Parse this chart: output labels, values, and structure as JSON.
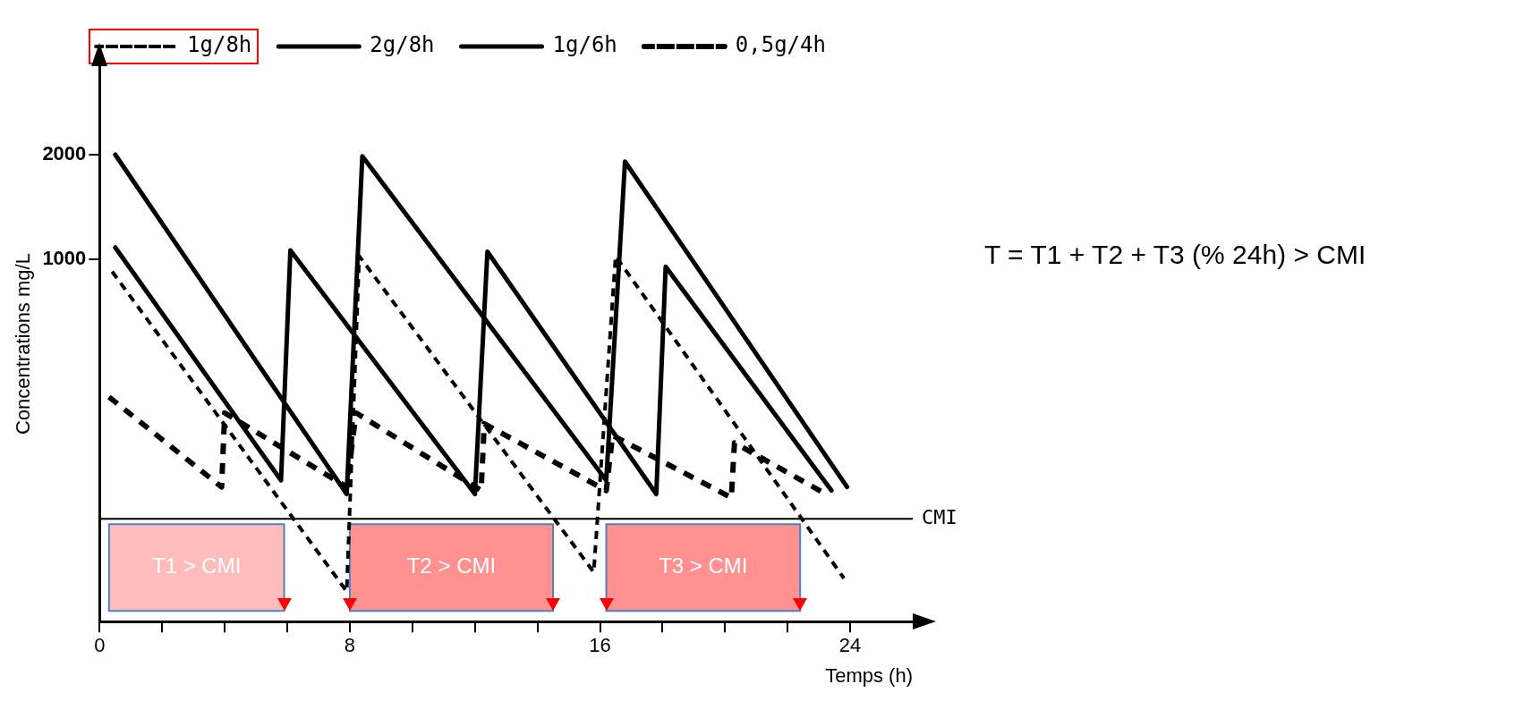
{
  "chart_data": {
    "type": "line",
    "xlabel": "Temps (h)",
    "ylabel": "Concentrations mg/L",
    "annotations": [
      "T = T1 + T2 + T3 (% 24h) > CMI"
    ],
    "xlim": [
      0,
      26
    ],
    "xticks": [
      0,
      {
        "value": 2,
        "label": null
      },
      {
        "value": 4,
        "label": null
      },
      {
        "value": 6,
        "label": null
      },
      8,
      {
        "value": 10,
        "label": null
      },
      {
        "value": 12,
        "label": null
      },
      {
        "value": 14,
        "label": null
      },
      16,
      {
        "value": 18,
        "label": null
      },
      {
        "value": 20,
        "label": null
      },
      {
        "value": 22,
        "label": null
      },
      24
    ],
    "ylim": [
      90,
      3600
    ],
    "yticks": [
      1000,
      2000
    ],
    "log": true,
    "grid": false,
    "legend": "top",
    "marker": "none",
    "series": [
      {
        "name": "1g/8h",
        "color": "#000000",
        "line_style": "dotted",
        "x": [
          0.4,
          7.9,
          8.3,
          15.8,
          16.5,
          23.8
        ],
        "values": [
          920,
          110,
          1020,
          125,
          1020,
          120
        ]
      },
      {
        "name": "2g/8h",
        "color": "#000000",
        "line_style": "solid",
        "x": [
          0.5,
          7.9,
          8.4,
          16.2,
          16.8,
          23.9
        ],
        "values": [
          2000,
          210,
          1980,
          230,
          1910,
          220
        ]
      },
      {
        "name": "1g/6h",
        "color": "#000000",
        "line_style": "solid",
        "x": [
          0.5,
          5.8,
          6.1,
          12.0,
          12.4,
          17.8,
          18.1,
          23.4
        ],
        "values": [
          1080,
          230,
          1060,
          210,
          1050,
          210,
          950,
          215
        ]
      },
      {
        "name": "0,5g/4h",
        "color": "#000000",
        "line_style": "dashed",
        "x": [
          0.3,
          3.9,
          4.0,
          7.9,
          8.2,
          12.2,
          12.3,
          16.2,
          16.4,
          20.2,
          20.3,
          23.1
        ],
        "values": [
          400,
          220,
          360,
          220,
          360,
          215,
          335,
          215,
          310,
          205,
          295,
          213
        ]
      }
    ],
    "ref_lines": [
      {
        "axis": "y",
        "value": 178,
        "label": "CMI",
        "color": "#000000"
      }
    ],
    "bands": [
      {
        "axis": "x",
        "from": 0.3,
        "to": 5.9,
        "label": "T1 > CMI",
        "color": "#ffbcbc"
      },
      {
        "axis": "x",
        "from": 8.0,
        "to": 14.5,
        "label": "T2 > CMI",
        "color": "#ff9191"
      },
      {
        "axis": "x",
        "from": 16.2,
        "to": 22.4,
        "label": "T3 > CMI",
        "color": "#ff9191"
      }
    ]
  }
}
